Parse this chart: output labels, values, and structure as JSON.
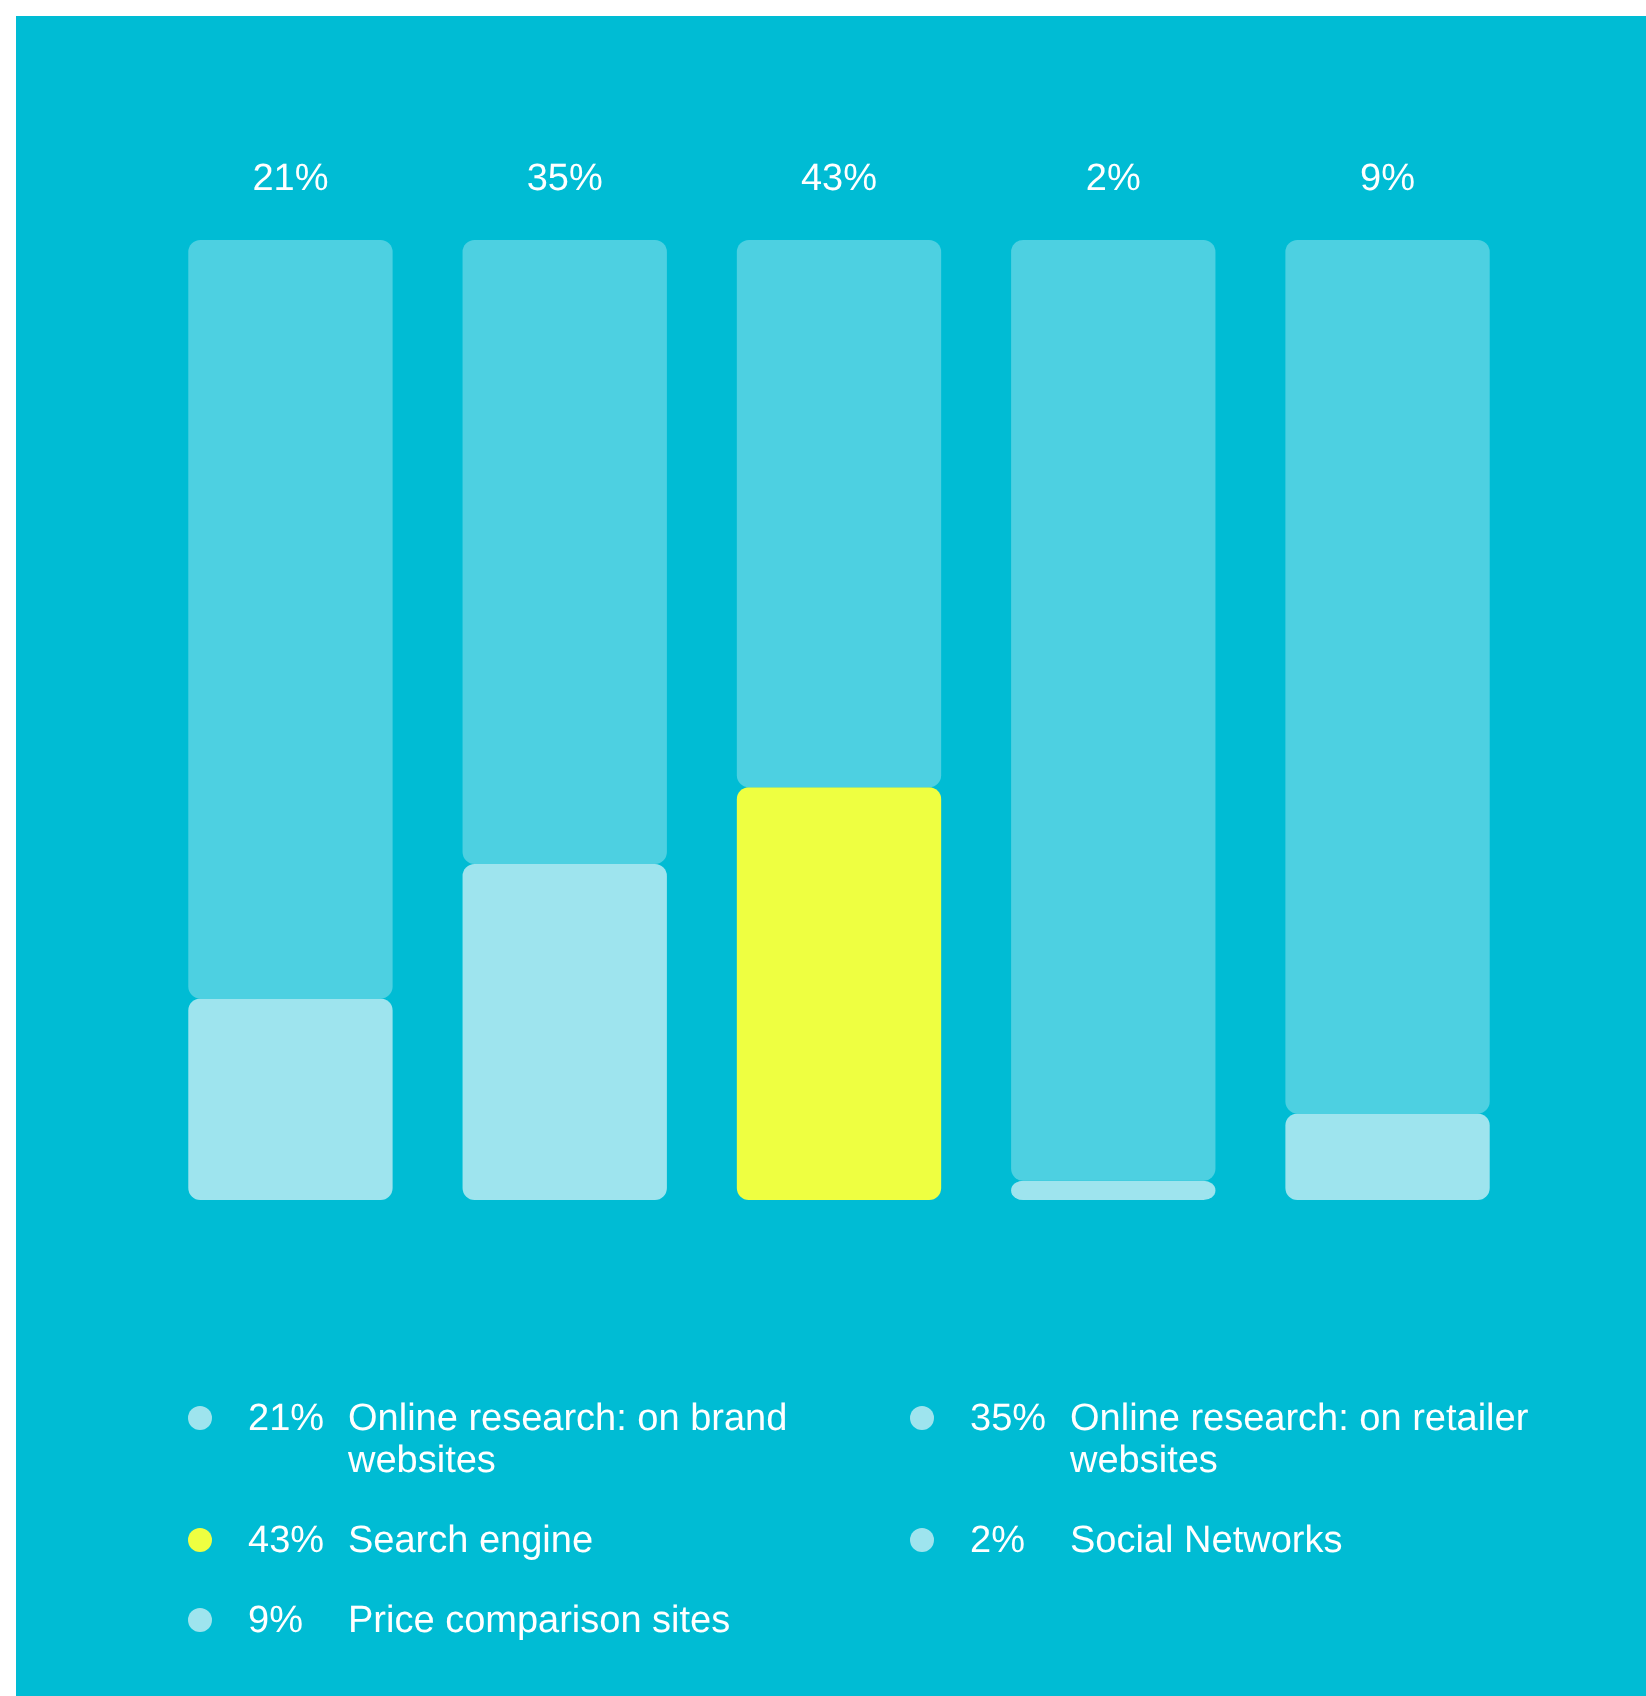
{
  "chart_data": {
    "type": "bar",
    "stacked": true,
    "categories": [
      null,
      null,
      null,
      null,
      null
    ],
    "series": [
      {
        "values": [
          21,
          35,
          43,
          2,
          9
        ],
        "colors": [
          "#9ee4ee",
          "#9ee4ee",
          "#eeff41",
          "#9ee4ee",
          "#9ee4ee"
        ],
        "value_labels": [
          "21%",
          "35%",
          "43%",
          "2%",
          "9%"
        ]
      },
      {
        "values": [
          79,
          65,
          57,
          98,
          91
        ],
        "color": "#4dd0e1"
      }
    ],
    "annotations": [
      "Online research: on brand websites",
      "Online research: on retailer websites",
      "Search engine",
      "Social Networks",
      "Price comparison sites"
    ],
    "ylim": [
      0,
      100
    ]
  }
}
